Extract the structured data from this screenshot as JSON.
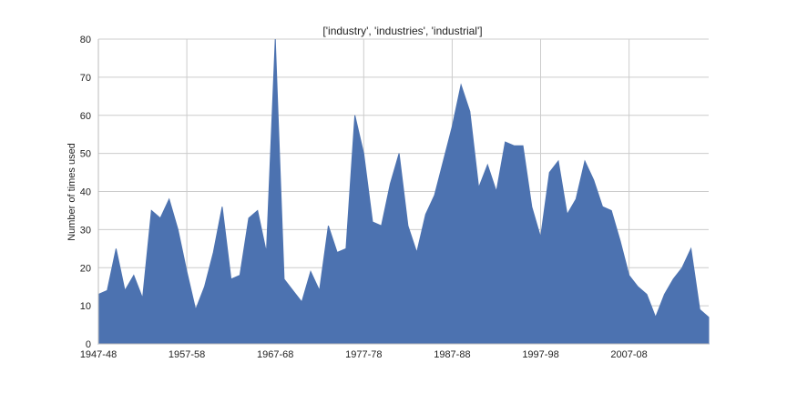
{
  "chart_data": {
    "type": "area",
    "title": "['industry', 'industries', 'industrial']",
    "xlabel": "",
    "ylabel": "Number of times used",
    "ylim": [
      0,
      80
    ],
    "yticks": [
      "0",
      "10",
      "20",
      "30",
      "40",
      "50",
      "60",
      "70",
      "80"
    ],
    "xtick_labels": [
      "1947-48",
      "1957-58",
      "1967-68",
      "1977-78",
      "1987-88",
      "1997-98",
      "2007-08"
    ],
    "grid": true,
    "fill_color": "#4c72b0",
    "x": [
      "1947-48",
      "1948-49",
      "1949-50",
      "1950-51",
      "1951-52",
      "1952-53",
      "1953-54",
      "1954-55",
      "1955-56",
      "1956-57",
      "1957-58",
      "1958-59",
      "1959-60",
      "1960-61",
      "1961-62",
      "1962-63",
      "1963-64",
      "1964-65",
      "1965-66",
      "1966-67",
      "1967-68",
      "1968-69",
      "1969-70",
      "1970-71",
      "1971-72",
      "1972-73",
      "1973-74",
      "1974-75",
      "1975-76",
      "1976-77",
      "1977-78",
      "1978-79",
      "1979-80",
      "1980-81",
      "1981-82",
      "1982-83",
      "1983-84",
      "1984-85",
      "1985-86",
      "1986-87",
      "1987-88",
      "1988-89",
      "1989-90",
      "1990-91",
      "1991-92",
      "1992-93",
      "1993-94",
      "1994-95",
      "1995-96",
      "1996-97",
      "1997-98",
      "1998-99",
      "1999-00",
      "2000-01",
      "2001-02",
      "2002-03",
      "2003-04",
      "2004-05",
      "2005-06",
      "2006-07",
      "2007-08",
      "2008-09",
      "2009-10",
      "2010-11",
      "2011-12",
      "2012-13",
      "2013-14",
      "2014-15",
      "2015-16",
      "2016-17"
    ],
    "values": [
      13,
      14,
      25,
      14,
      18,
      12,
      35,
      33,
      38,
      30,
      19,
      9,
      15,
      24,
      36,
      17,
      18,
      33,
      35,
      24,
      81,
      17,
      14,
      11,
      19,
      14,
      31,
      24,
      25,
      60,
      50,
      32,
      31,
      42,
      50,
      31,
      24,
      34,
      39,
      48,
      57,
      68,
      61,
      41,
      47,
      40,
      53,
      52,
      52,
      36,
      28,
      45,
      48,
      34,
      38,
      48,
      43,
      36,
      35,
      27,
      18,
      15,
      13,
      7,
      13,
      17,
      20,
      25,
      9,
      7
    ]
  }
}
